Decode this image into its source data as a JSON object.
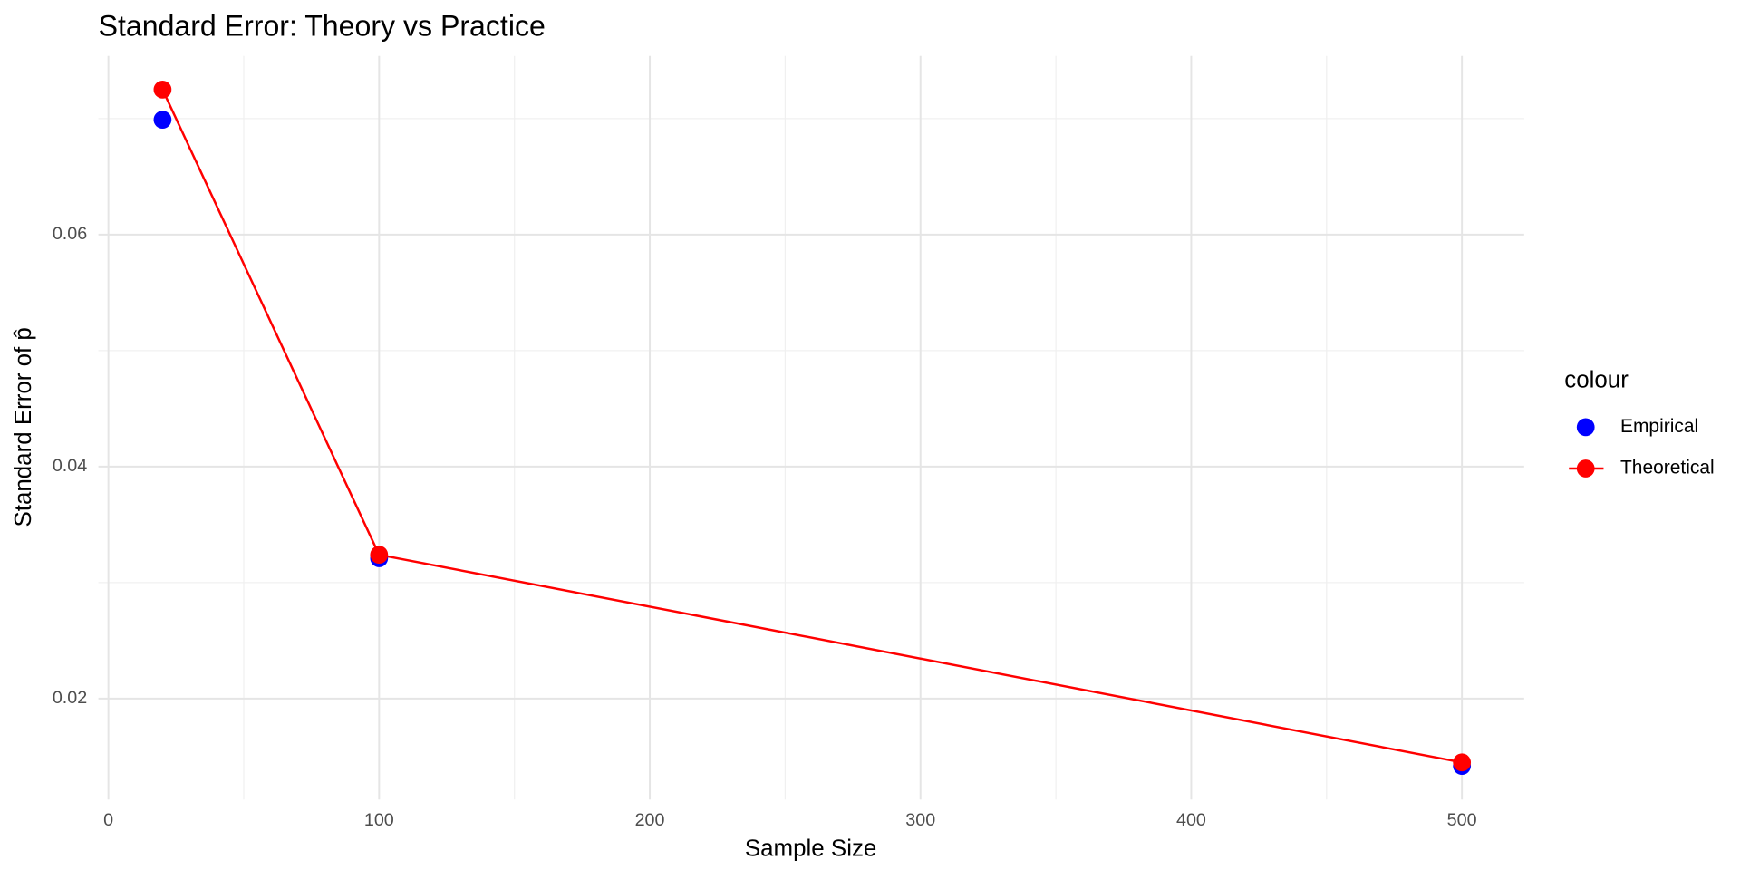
{
  "chart_data": {
    "type": "scatter",
    "title": "Standard Error: Theory vs Practice",
    "x_label": "Sample Size",
    "y_label": "Standard Error of p̂",
    "legend_title": "colour",
    "x": [
      20,
      100,
      500
    ],
    "series": [
      {
        "name": "Empirical",
        "color": "#0000ff",
        "line": false,
        "values": [
          0.0699,
          0.0321,
          0.0142
        ]
      },
      {
        "name": "Theoretical",
        "color": "#ff0000",
        "line": true,
        "values": [
          0.0725,
          0.0324,
          0.0145
        ]
      }
    ],
    "xlim": [
      -3.7,
      523
    ],
    "ylim": [
      0.0113,
      0.0754
    ],
    "xticks": [
      0,
      100,
      200,
      300,
      400,
      500
    ],
    "yticks": [
      0.02,
      0.04,
      0.06
    ],
    "grid": true,
    "legend": "right"
  }
}
